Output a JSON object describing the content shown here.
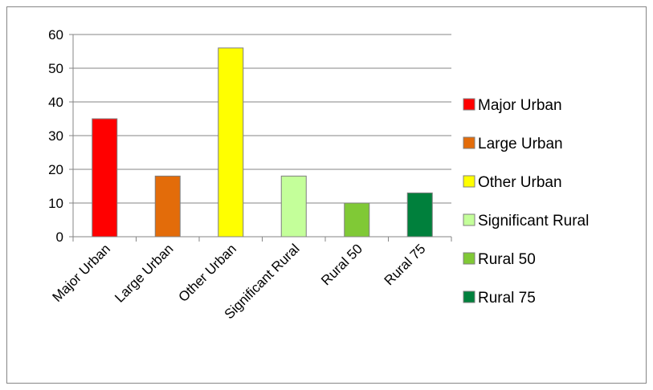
{
  "chart_data": {
    "type": "bar",
    "categories": [
      "Major Urban",
      "Large Urban",
      "Other Urban",
      "Significant Rural",
      "Rural 50",
      "Rural 75"
    ],
    "values": [
      35,
      18,
      56,
      18,
      10,
      13
    ],
    "colors": [
      "#ff0000",
      "#e36c0a",
      "#ffff00",
      "#c4ff9a",
      "#80c936",
      "#00803c"
    ],
    "ylim": [
      0,
      60
    ],
    "yticks": [
      0,
      10,
      20,
      30,
      40,
      50,
      60
    ],
    "grid": true,
    "legend_position": "right",
    "legend": [
      "Major Urban",
      "Large Urban",
      "Other Urban",
      "Significant Rural",
      "Rural 50",
      "Rural 75"
    ]
  }
}
